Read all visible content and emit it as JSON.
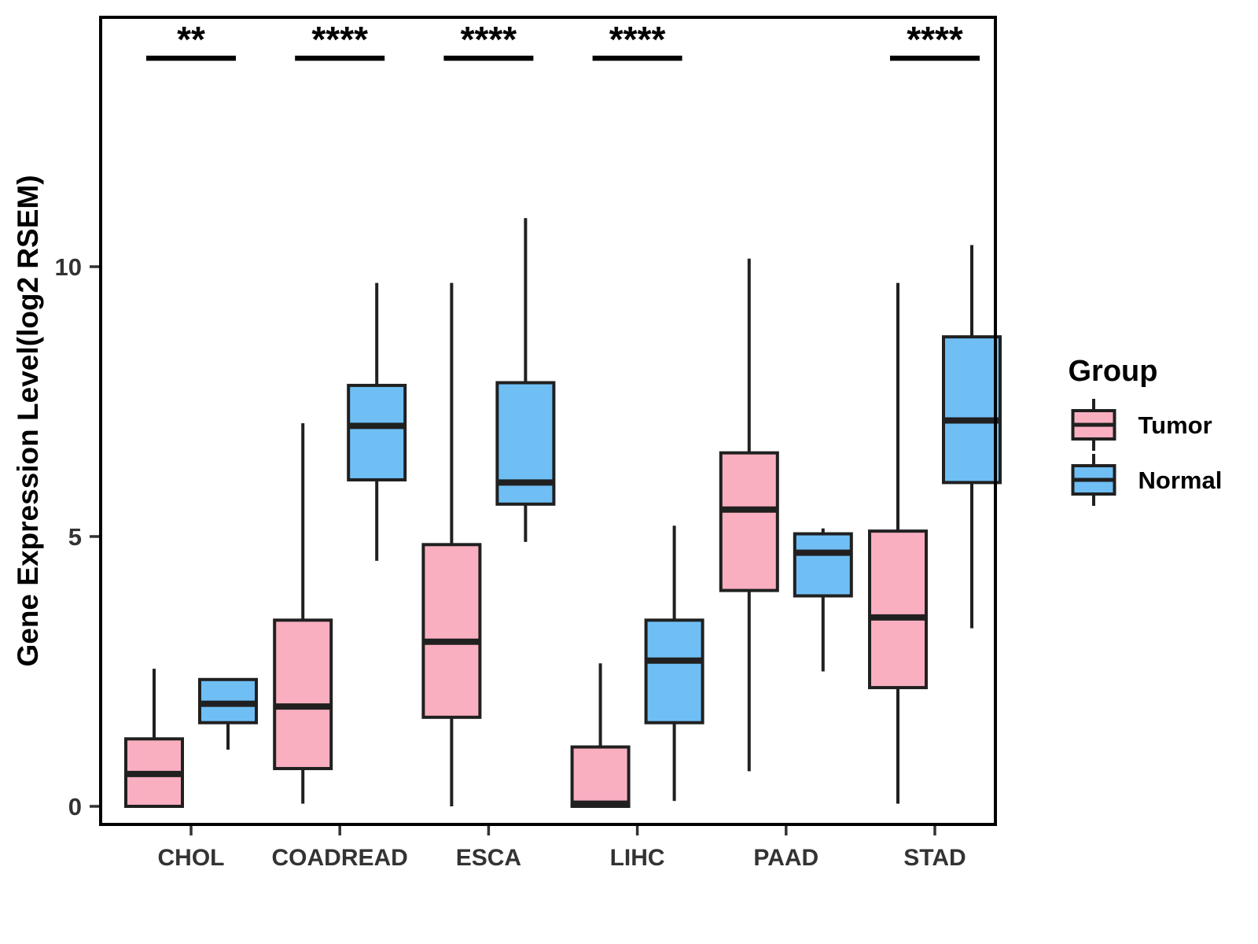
{
  "chart_data": {
    "type": "boxplot",
    "title": "",
    "xlabel": "",
    "ylabel": "Gene Expression Level(log2 RSEM)",
    "categories": [
      "CHOL",
      "COADREAD",
      "ESCA",
      "LIHC",
      "PAAD",
      "STAD"
    ],
    "yticks": [
      0,
      5,
      10
    ],
    "ylim": [
      -0.4,
      14.6
    ],
    "grid": false,
    "legend": {
      "title": "Group",
      "position": "right",
      "entries": [
        {
          "label": "Tumor",
          "color": "#FAAFC1"
        },
        {
          "label": "Normal",
          "color": "#6FBFF5"
        }
      ]
    },
    "groups": [
      "Tumor",
      "Normal"
    ],
    "series": [
      {
        "category": "CHOL",
        "group": "Tumor",
        "min": 0,
        "q1": 0,
        "median": 0.6,
        "q3": 1.25,
        "max": 2.55
      },
      {
        "category": "CHOL",
        "group": "Normal",
        "min": 1.05,
        "q1": 1.55,
        "median": 1.9,
        "q3": 2.35,
        "max": 2.35
      },
      {
        "category": "COADREAD",
        "group": "Tumor",
        "min": 0.05,
        "q1": 0.7,
        "median": 1.85,
        "q3": 3.45,
        "max": 7.1
      },
      {
        "category": "COADREAD",
        "group": "Normal",
        "min": 4.55,
        "q1": 6.05,
        "median": 7.05,
        "q3": 7.8,
        "max": 9.7
      },
      {
        "category": "ESCA",
        "group": "Tumor",
        "min": 0,
        "q1": 1.65,
        "median": 3.05,
        "q3": 4.85,
        "max": 9.7
      },
      {
        "category": "ESCA",
        "group": "Normal",
        "min": 4.9,
        "q1": 5.6,
        "median": 6.0,
        "q3": 7.85,
        "max": 10.9
      },
      {
        "category": "LIHC",
        "group": "Tumor",
        "min": 0,
        "q1": 0,
        "median": 0.05,
        "q3": 1.1,
        "max": 2.65
      },
      {
        "category": "LIHC",
        "group": "Normal",
        "min": 0.1,
        "q1": 1.55,
        "median": 2.7,
        "q3": 3.45,
        "max": 5.2
      },
      {
        "category": "PAAD",
        "group": "Tumor",
        "min": 0.65,
        "q1": 4.0,
        "median": 5.5,
        "q3": 6.55,
        "max": 10.15
      },
      {
        "category": "PAAD",
        "group": "Normal",
        "min": 2.5,
        "q1": 3.9,
        "median": 4.7,
        "q3": 5.05,
        "max": 5.15
      },
      {
        "category": "STAD",
        "group": "Tumor",
        "min": 0.05,
        "q1": 2.2,
        "median": 3.5,
        "q3": 5.1,
        "max": 9.7
      },
      {
        "category": "STAD",
        "group": "Normal",
        "min": 3.3,
        "q1": 6.0,
        "median": 7.15,
        "q3": 8.7,
        "max": 10.4
      }
    ],
    "significance": [
      {
        "category": "CHOL",
        "label": "**"
      },
      {
        "category": "COADREAD",
        "label": "****"
      },
      {
        "category": "ESCA",
        "label": "****"
      },
      {
        "category": "LIHC",
        "label": "****"
      },
      {
        "category": "STAD",
        "label": "****"
      }
    ],
    "colors": {
      "tumor_fill": "#FAAFC1",
      "normal_fill": "#6FBFF5",
      "box_stroke": "#202020",
      "median_stroke": "#202020",
      "axis_text": "#333333",
      "panel_border": "#000000",
      "annotation": "#000000",
      "background": "#ffffff"
    }
  }
}
